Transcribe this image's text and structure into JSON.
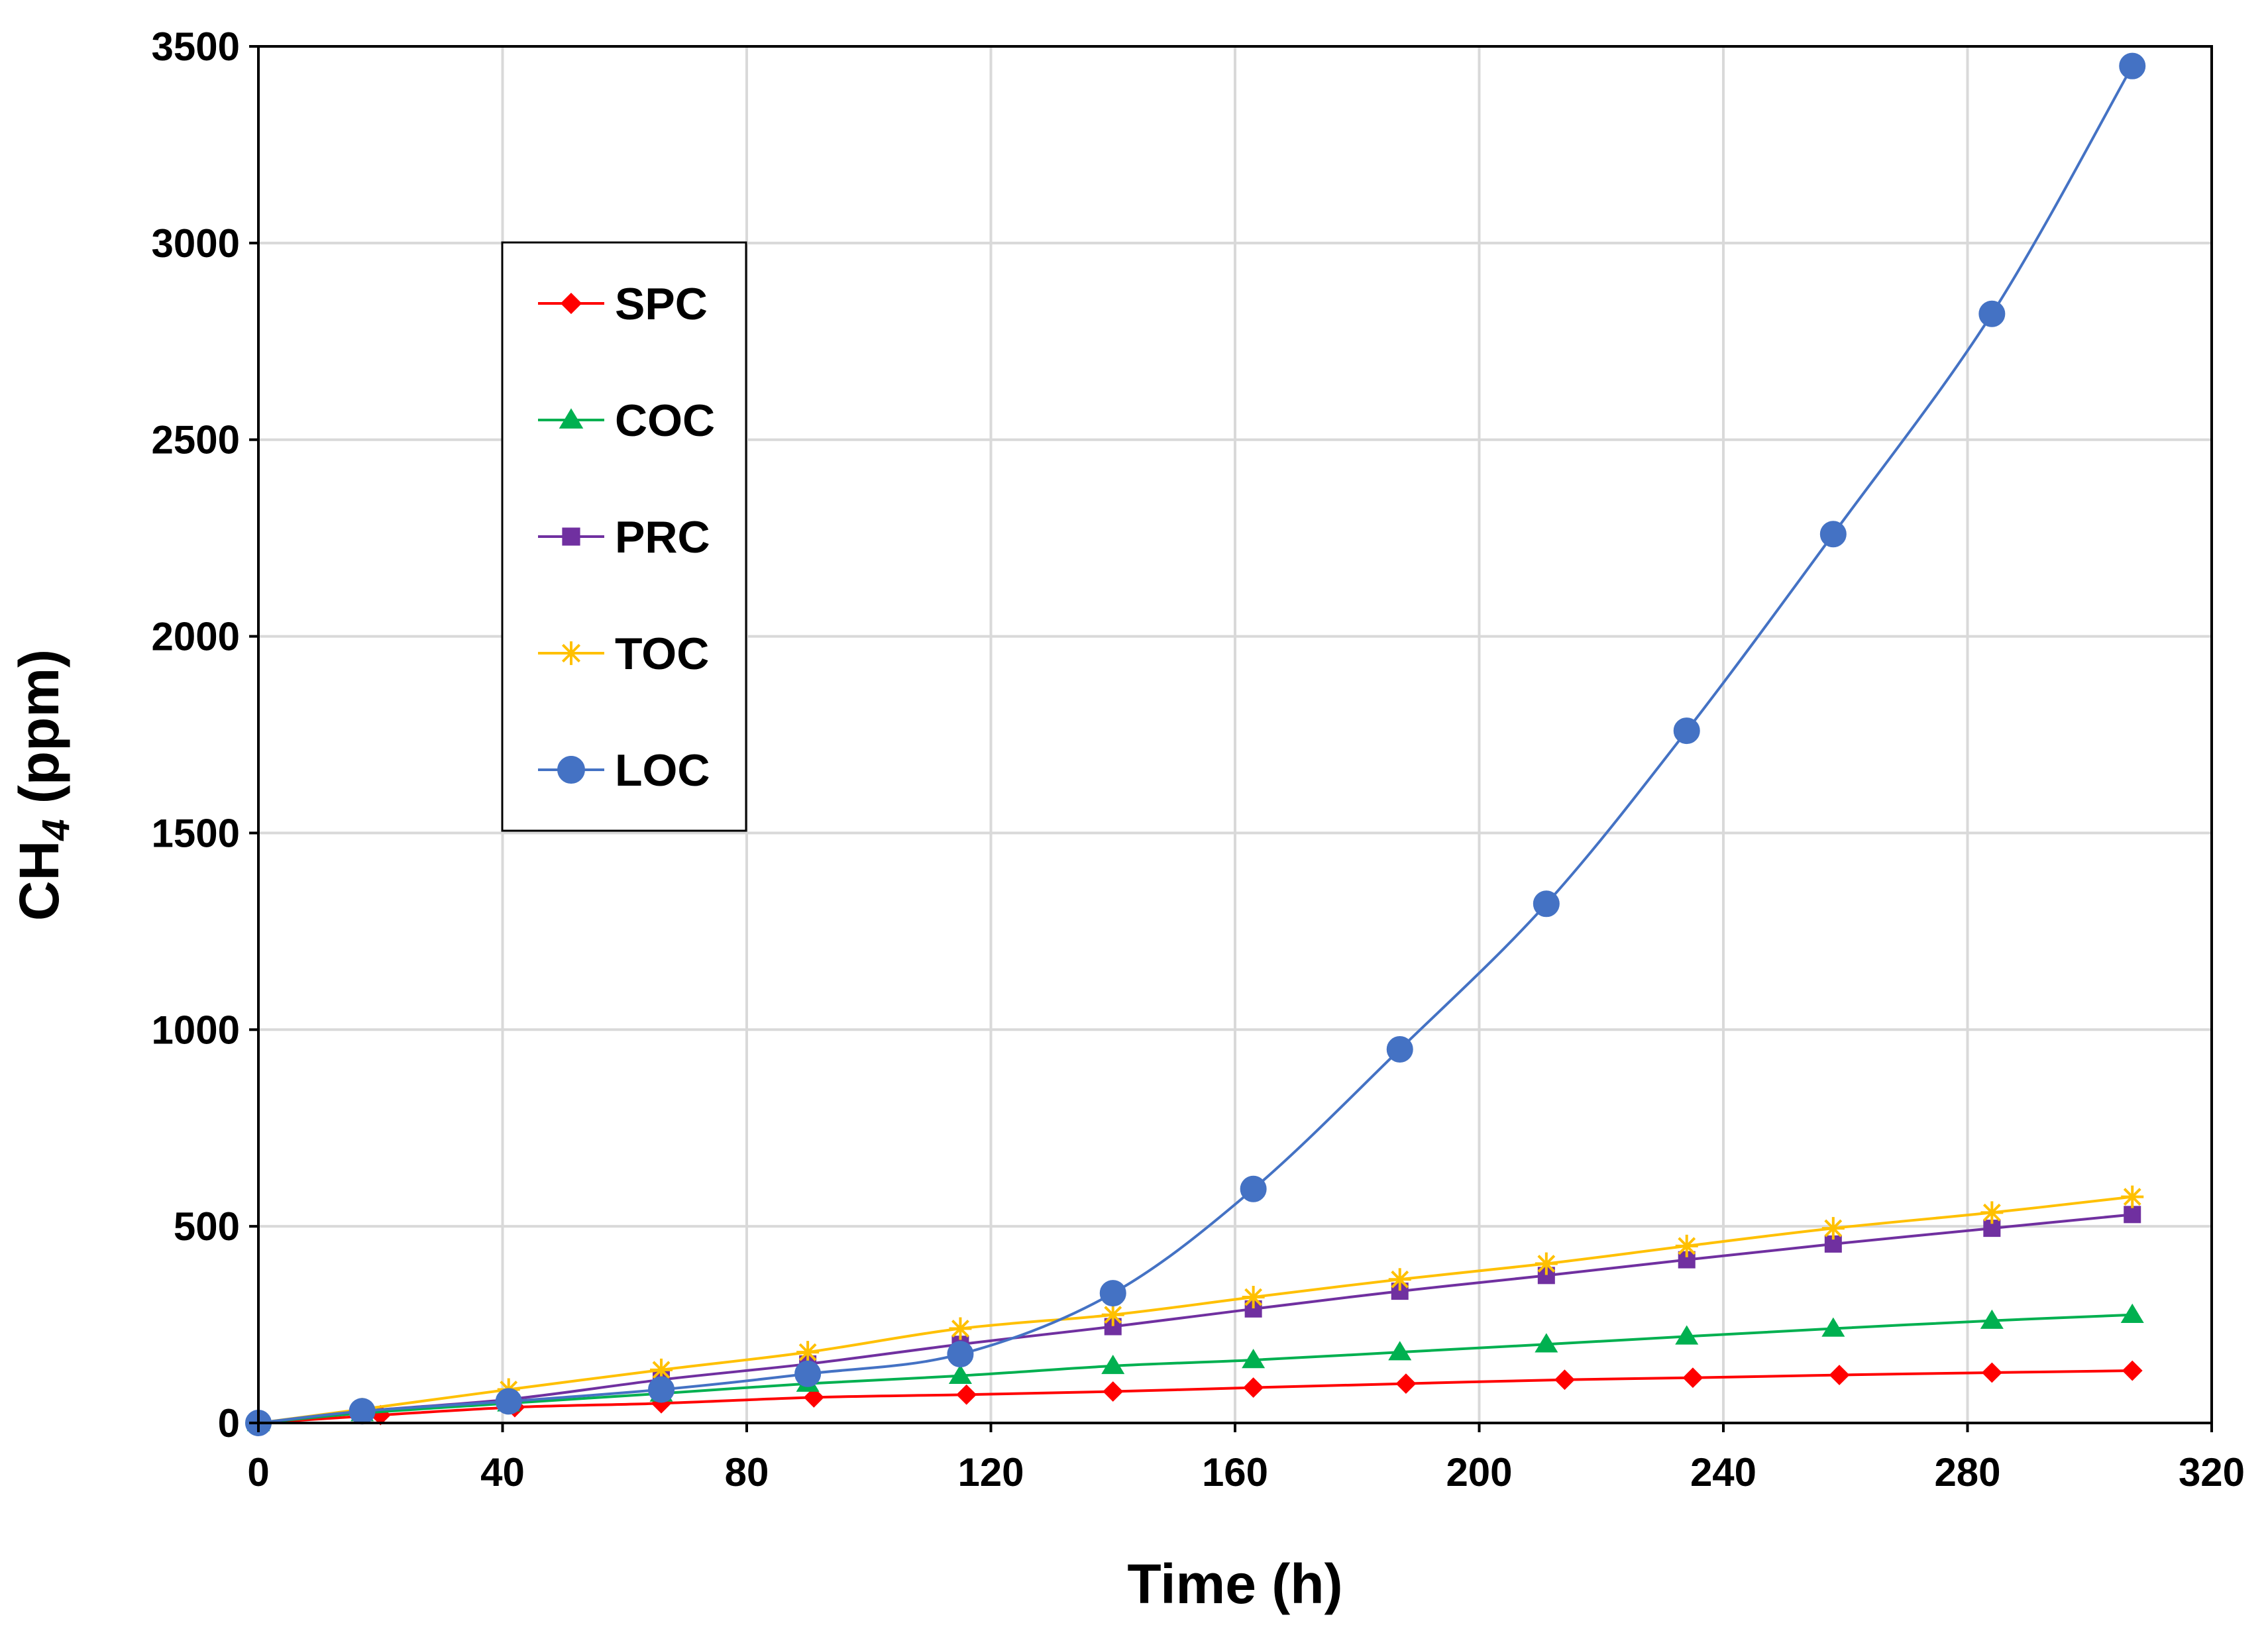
{
  "chart_data": {
    "type": "line",
    "title": "",
    "xlabel": "Time (h)",
    "ylabel_main": "CH",
    "ylabel_sub": "4",
    "ylabel_unit": " (ppm)",
    "xlim": [
      0,
      320
    ],
    "ylim": [
      0,
      3500
    ],
    "xticks": [
      0,
      40,
      80,
      120,
      160,
      200,
      240,
      280,
      320
    ],
    "yticks": [
      0,
      500,
      1000,
      1500,
      2000,
      2500,
      3000,
      3500
    ],
    "grid": true,
    "legend_position": "upper-left",
    "series": [
      {
        "name": "SPC",
        "color": "#ff0000",
        "marker": "diamond",
        "x": [
          0,
          20,
          42,
          66,
          91,
          116,
          140,
          163,
          188,
          214,
          235,
          259,
          284,
          307
        ],
        "y": [
          0,
          20,
          40,
          50,
          65,
          72,
          80,
          90,
          100,
          110,
          115,
          122,
          128,
          133
        ]
      },
      {
        "name": "COC",
        "color": "#00b050",
        "marker": "triangle",
        "x": [
          0,
          17,
          41,
          66,
          90,
          115,
          140,
          163,
          187,
          211,
          234,
          258,
          284,
          307
        ],
        "y": [
          0,
          25,
          50,
          75,
          100,
          120,
          145,
          160,
          180,
          200,
          220,
          240,
          260,
          275
        ]
      },
      {
        "name": "PRC",
        "color": "#7030a0",
        "marker": "square",
        "x": [
          0,
          17,
          41,
          66,
          90,
          115,
          140,
          163,
          187,
          211,
          234,
          258,
          284,
          307
        ],
        "y": [
          0,
          30,
          60,
          110,
          150,
          200,
          245,
          290,
          335,
          375,
          415,
          455,
          495,
          530
        ]
      },
      {
        "name": "TOC",
        "color": "#ffc000",
        "marker": "asterisk",
        "x": [
          0,
          17,
          41,
          66,
          90,
          115,
          140,
          163,
          187,
          211,
          234,
          258,
          284,
          307
        ],
        "y": [
          0,
          35,
          85,
          135,
          180,
          240,
          275,
          320,
          365,
          405,
          450,
          495,
          535,
          575
        ]
      },
      {
        "name": "LOC",
        "color": "#4472c4",
        "marker": "circle",
        "x": [
          0,
          17,
          41,
          66,
          90,
          115,
          140,
          163,
          187,
          211,
          234,
          258,
          284,
          307
        ],
        "y": [
          0,
          30,
          55,
          85,
          125,
          175,
          330,
          595,
          950,
          1320,
          1760,
          2260,
          2820,
          3450
        ]
      }
    ]
  }
}
